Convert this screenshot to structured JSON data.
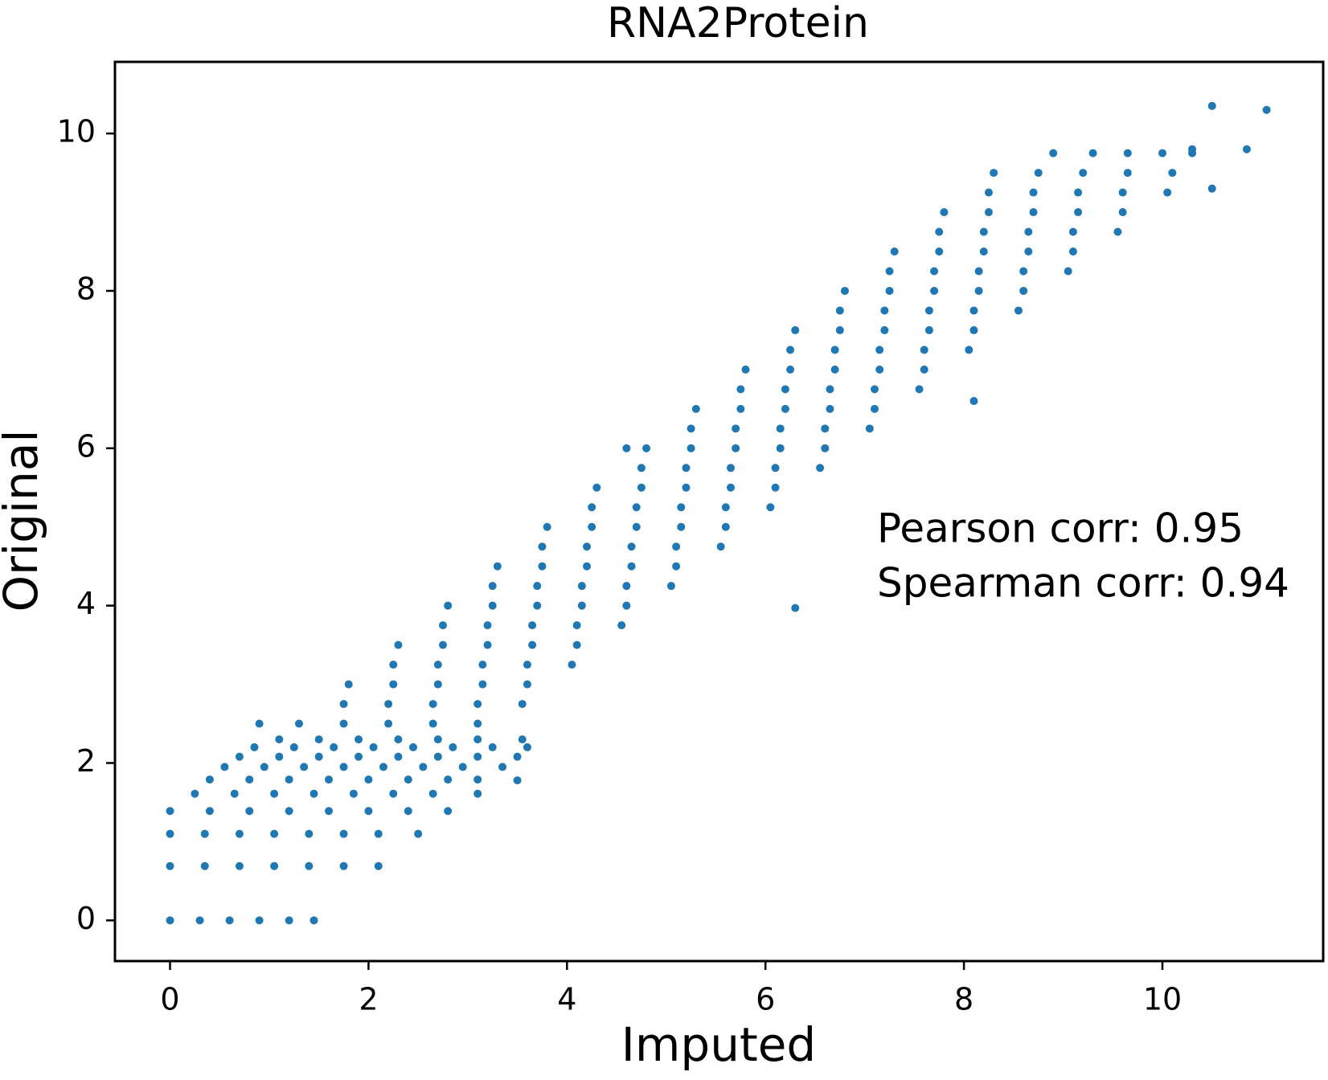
{
  "chart_data": {
    "type": "scatter",
    "title": "RNA2Protein",
    "x_label": "Imputed",
    "y_label": "Original",
    "color": "#1f77b4",
    "annotations": [
      "Pearson corr: 0.95",
      "Spearman corr: 0.94"
    ],
    "xlim": [
      -0.555,
      11.62
    ],
    "ylim": [
      -0.517,
      10.91
    ],
    "xticks": [
      0,
      2,
      4,
      6,
      8,
      10
    ],
    "yticks": [
      0,
      2,
      4,
      6,
      8,
      10
    ],
    "grid": false,
    "x": [
      1.3,
      1.75,
      2.2,
      2.65,
      3.1,
      1.75,
      2.2,
      2.65,
      3.1,
      3.55,
      1.8,
      2.25,
      2.7,
      3.15,
      3.6,
      2.25,
      2.7,
      3.15,
      3.6,
      4.05,
      2.3,
      2.75,
      3.2,
      3.65,
      4.1,
      2.75,
      3.2,
      3.65,
      4.1,
      4.55,
      2.8,
      3.25,
      3.7,
      4.15,
      4.6,
      3.25,
      3.7,
      4.15,
      4.6,
      5.05,
      3.3,
      3.75,
      4.2,
      4.65,
      5.1,
      3.75,
      4.2,
      4.65,
      5.1,
      5.55,
      3.8,
      4.25,
      4.7,
      5.15,
      5.6,
      4.25,
      4.7,
      5.15,
      5.6,
      6.05,
      4.3,
      4.75,
      5.2,
      5.65,
      6.1,
      4.75,
      5.2,
      5.65,
      6.1,
      6.55,
      4.8,
      5.25,
      5.7,
      6.15,
      6.6,
      5.25,
      5.7,
      6.15,
      6.6,
      7.05,
      5.3,
      5.75,
      6.2,
      6.65,
      7.1,
      5.75,
      6.2,
      6.65,
      7.1,
      7.55,
      5.8,
      6.25,
      6.7,
      7.15,
      7.6,
      6.25,
      6.7,
      7.15,
      7.6,
      8.05,
      6.3,
      6.75,
      7.2,
      7.65,
      8.1,
      6.75,
      7.2,
      7.65,
      8.1,
      8.55,
      6.8,
      7.25,
      7.7,
      8.15,
      8.6,
      7.25,
      7.7,
      8.15,
      8.6,
      9.05,
      7.3,
      7.75,
      8.2,
      8.65,
      9.1,
      7.75,
      8.2,
      8.65,
      9.1,
      9.55,
      7.8,
      8.25,
      8.7,
      9.15,
      9.6,
      8.25,
      8.7,
      9.15,
      9.6,
      10.05,
      8.3,
      8.75,
      9.2,
      9.65,
      10.1,
      8.9,
      9.3,
      9.65,
      10.0,
      10.3,
      0,
      0.3,
      0.6,
      0.9,
      1.2,
      1.45,
      0,
      0.35,
      0.7,
      1.05,
      1.4,
      1.75,
      2.1,
      0,
      0.35,
      0.7,
      1.05,
      1.4,
      1.75,
      2.1,
      2.5,
      0,
      0.4,
      0.8,
      1.2,
      1.6,
      2.0,
      2.4,
      2.8,
      0.25,
      0.65,
      1.05,
      1.45,
      1.85,
      2.25,
      2.65,
      3.1,
      0.4,
      0.8,
      1.2,
      1.6,
      2.0,
      2.4,
      2.8,
      3.1,
      0.55,
      0.95,
      1.35,
      1.75,
      2.15,
      2.55,
      2.95,
      3.35,
      0.7,
      1.1,
      1.5,
      1.9,
      2.3,
      2.7,
      3.1,
      3.5,
      0.85,
      1.25,
      1.65,
      2.05,
      2.45,
      2.85,
      3.25,
      3.6,
      1.1,
      1.5,
      1.9,
      2.3,
      2.7,
      3.1,
      3.55,
      11.05,
      10.5,
      10.85,
      10.5,
      3.5,
      0.9,
      6.3,
      8.1,
      10.3,
      4.6
    ],
    "values": [
      2.5,
      2.5,
      2.5,
      2.5,
      2.5,
      2.75,
      2.75,
      2.75,
      2.75,
      2.75,
      3,
      3,
      3,
      3,
      3,
      3.25,
      3.25,
      3.25,
      3.25,
      3.25,
      3.5,
      3.5,
      3.5,
      3.5,
      3.5,
      3.75,
      3.75,
      3.75,
      3.75,
      3.75,
      4,
      4,
      4,
      4,
      4,
      4.25,
      4.25,
      4.25,
      4.25,
      4.25,
      4.5,
      4.5,
      4.5,
      4.5,
      4.5,
      4.75,
      4.75,
      4.75,
      4.75,
      4.75,
      5,
      5,
      5,
      5,
      5,
      5.25,
      5.25,
      5.25,
      5.25,
      5.25,
      5.5,
      5.5,
      5.5,
      5.5,
      5.5,
      5.75,
      5.75,
      5.75,
      5.75,
      5.75,
      6,
      6,
      6,
      6,
      6,
      6.25,
      6.25,
      6.25,
      6.25,
      6.25,
      6.5,
      6.5,
      6.5,
      6.5,
      6.5,
      6.75,
      6.75,
      6.75,
      6.75,
      6.75,
      7,
      7,
      7,
      7,
      7,
      7.25,
      7.25,
      7.25,
      7.25,
      7.25,
      7.5,
      7.5,
      7.5,
      7.5,
      7.5,
      7.75,
      7.75,
      7.75,
      7.75,
      7.75,
      8,
      8,
      8,
      8,
      8,
      8.25,
      8.25,
      8.25,
      8.25,
      8.25,
      8.5,
      8.5,
      8.5,
      8.5,
      8.5,
      8.75,
      8.75,
      8.75,
      8.75,
      8.75,
      9,
      9,
      9,
      9,
      9,
      9.25,
      9.25,
      9.25,
      9.25,
      9.25,
      9.5,
      9.5,
      9.5,
      9.5,
      9.5,
      9.75,
      9.75,
      9.75,
      9.75,
      9.75,
      0,
      0,
      0,
      0,
      0,
      0,
      0.69,
      0.69,
      0.69,
      0.69,
      0.69,
      0.69,
      0.69,
      1.1,
      1.1,
      1.1,
      1.1,
      1.1,
      1.1,
      1.1,
      1.1,
      1.39,
      1.39,
      1.39,
      1.39,
      1.39,
      1.39,
      1.39,
      1.39,
      1.61,
      1.61,
      1.61,
      1.61,
      1.61,
      1.61,
      1.61,
      1.61,
      1.79,
      1.79,
      1.79,
      1.79,
      1.79,
      1.79,
      1.79,
      1.79,
      1.95,
      1.95,
      1.95,
      1.95,
      1.95,
      1.95,
      1.95,
      1.95,
      2.08,
      2.08,
      2.08,
      2.08,
      2.08,
      2.08,
      2.08,
      2.08,
      2.2,
      2.2,
      2.2,
      2.2,
      2.2,
      2.2,
      2.2,
      2.2,
      2.3,
      2.3,
      2.3,
      2.3,
      2.3,
      2.3,
      2.3,
      10.3,
      10.35,
      9.8,
      9.3,
      1.78,
      2.5,
      3.97,
      6.6,
      9.8,
      6.0
    ]
  }
}
